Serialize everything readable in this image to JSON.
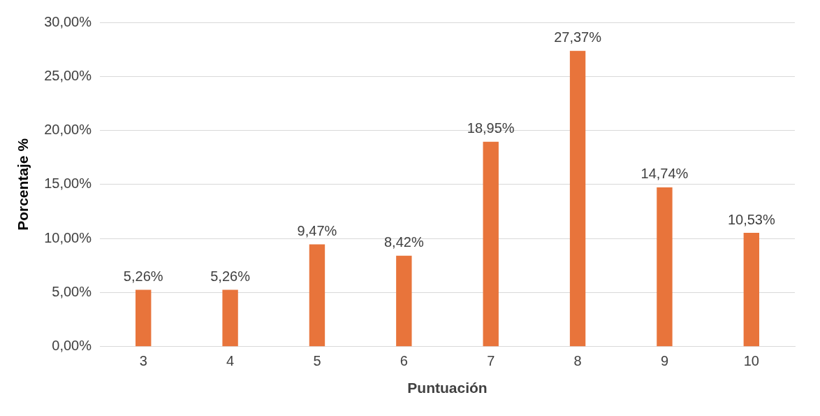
{
  "chart_data": {
    "type": "bar",
    "xlabel": "Puntuación",
    "ylabel": "Porcentaje %",
    "categories": [
      "3",
      "4",
      "5",
      "6",
      "7",
      "8",
      "9",
      "10"
    ],
    "values": [
      5.26,
      5.26,
      9.47,
      8.42,
      18.95,
      27.37,
      14.74,
      10.53
    ],
    "value_labels": [
      "5,26%",
      "5,26%",
      "9,47%",
      "8,42%",
      "18,95%",
      "27,37%",
      "14,74%",
      "10,53%"
    ],
    "color": "#e8743b",
    "ylim": [
      0,
      30
    ],
    "yticks": [
      {
        "value": 0,
        "label": "0,00%"
      },
      {
        "value": 5,
        "label": "5,00%"
      },
      {
        "value": 10,
        "label": "10,00%"
      },
      {
        "value": 15,
        "label": "15,00%"
      },
      {
        "value": 20,
        "label": "20,00%"
      },
      {
        "value": 25,
        "label": "25,00%"
      },
      {
        "value": 30,
        "label": "30,00%"
      }
    ],
    "grid": "y",
    "legend": false
  }
}
